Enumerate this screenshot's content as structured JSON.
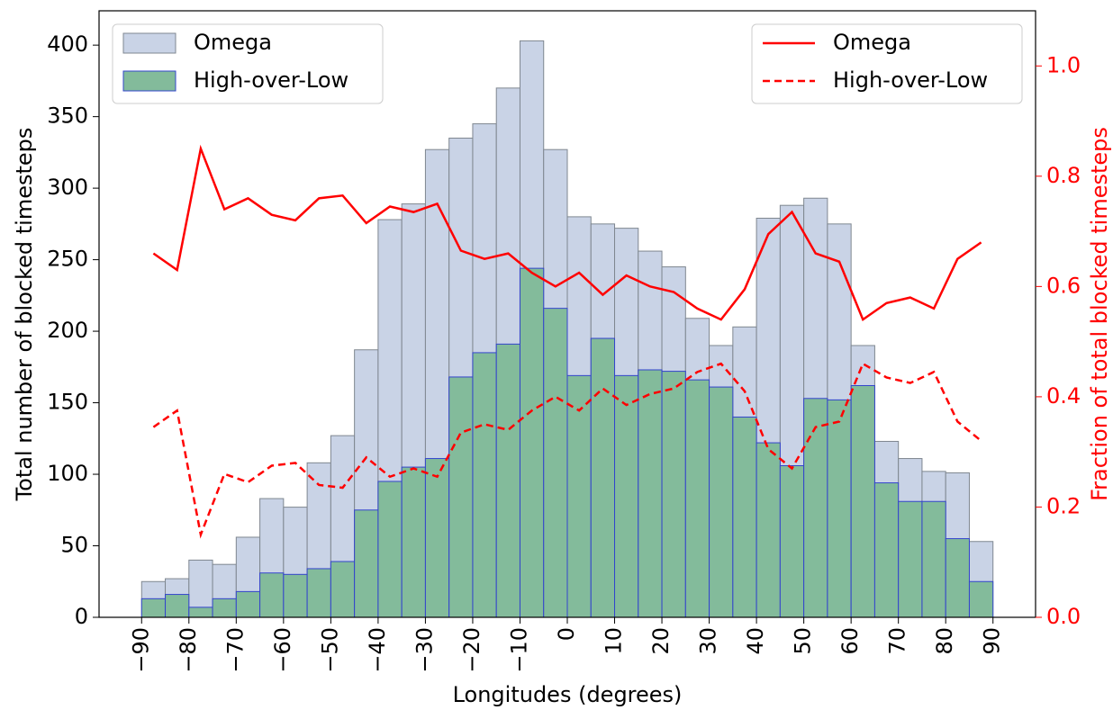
{
  "chart_data": {
    "type": "histogram",
    "xlabel": "Longitudes (degrees)",
    "ylabel": "Total number of blocked timesteps",
    "y2label": "Fraction of total blocked timesteps",
    "bins": [
      -90,
      -85,
      -80,
      -75,
      -70,
      -65,
      -60,
      -55,
      -50,
      -45,
      -40,
      -35,
      -30,
      -25,
      -20,
      -15,
      -10,
      -5,
      0,
      5,
      10,
      15,
      20,
      25,
      30,
      35,
      40,
      45,
      50,
      55,
      60,
      65,
      70,
      75,
      80,
      85,
      90
    ],
    "x": [
      -87.5,
      -82.5,
      -77.5,
      -72.5,
      -67.5,
      -62.5,
      -57.5,
      -52.5,
      -47.5,
      -42.5,
      -37.5,
      -32.5,
      -27.5,
      -22.5,
      -17.5,
      -12.5,
      -7.5,
      -2.5,
      2.5,
      7.5,
      12.5,
      17.5,
      22.5,
      27.5,
      32.5,
      37.5,
      42.5,
      47.5,
      52.5,
      57.5,
      62.5,
      67.5,
      72.5,
      77.5,
      82.5,
      87.5
    ],
    "series": [
      {
        "name": "Omega",
        "type": "bar",
        "color": "#c9d3e6",
        "edgecolor": "#7f8790",
        "values": [
          25,
          27,
          40,
          37,
          56,
          83,
          77,
          108,
          127,
          187,
          278,
          289,
          327,
          335,
          345,
          370,
          403,
          327,
          280,
          275,
          272,
          256,
          245,
          209,
          190,
          203,
          279,
          288,
          293,
          275,
          190,
          123,
          111,
          102,
          101,
          53
        ]
      },
      {
        "name": "High-over-Low",
        "type": "bar",
        "color": "#83bb9b",
        "edgecolor": "#3344cc",
        "values": [
          13,
          16,
          7,
          13,
          18,
          31,
          30,
          34,
          39,
          75,
          95,
          105,
          111,
          168,
          185,
          191,
          244,
          216,
          169,
          195,
          169,
          173,
          172,
          166,
          161,
          140,
          122,
          106,
          153,
          152,
          162,
          94,
          81,
          81,
          55,
          25
        ]
      },
      {
        "name": "Omega",
        "type": "line",
        "axis": "y2",
        "color": "#ff0000",
        "linestyle": "solid",
        "values": [
          0.66,
          0.63,
          0.85,
          0.74,
          0.76,
          0.73,
          0.72,
          0.76,
          0.765,
          0.715,
          0.745,
          0.735,
          0.75,
          0.665,
          0.65,
          0.66,
          0.625,
          0.6,
          0.625,
          0.585,
          0.62,
          0.6,
          0.59,
          0.56,
          0.54,
          0.595,
          0.695,
          0.735,
          0.66,
          0.645,
          0.54,
          0.57,
          0.58,
          0.56,
          0.65,
          0.68
        ]
      },
      {
        "name": "High-over-Low",
        "type": "line",
        "axis": "y2",
        "color": "#ff0000",
        "linestyle": "dashed",
        "values": [
          0.345,
          0.375,
          0.15,
          0.26,
          0.245,
          0.275,
          0.28,
          0.24,
          0.235,
          0.29,
          0.255,
          0.27,
          0.255,
          0.335,
          0.35,
          0.34,
          0.375,
          0.4,
          0.375,
          0.415,
          0.385,
          0.405,
          0.415,
          0.445,
          0.46,
          0.41,
          0.305,
          0.27,
          0.345,
          0.355,
          0.46,
          0.435,
          0.425,
          0.445,
          0.355,
          0.32
        ]
      }
    ],
    "xlim": [
      -99,
      99
    ],
    "ylim": [
      0,
      424
    ],
    "y2lim": [
      0,
      1.1
    ],
    "xticks": [
      {
        "value": -90,
        "label": "−90"
      },
      {
        "value": -80,
        "label": "−80"
      },
      {
        "value": -70,
        "label": "−70"
      },
      {
        "value": -60,
        "label": "−60"
      },
      {
        "value": -50,
        "label": "−50"
      },
      {
        "value": -40,
        "label": "−40"
      },
      {
        "value": -30,
        "label": "−30"
      },
      {
        "value": -20,
        "label": "−20"
      },
      {
        "value": -10,
        "label": "−10"
      },
      0,
      10,
      20,
      30,
      40,
      50,
      60,
      70,
      80,
      90
    ],
    "yticks": [
      0,
      50,
      100,
      150,
      200,
      250,
      300,
      350,
      400
    ],
    "y2ticks": [
      {
        "value": 0,
        "label": "0.0"
      },
      0.2,
      0.4,
      0.6,
      0.8,
      {
        "value": 1,
        "label": "1.0"
      }
    ],
    "y2color": "#ff0000",
    "legend": "upper left",
    "legend2": "upper right"
  }
}
